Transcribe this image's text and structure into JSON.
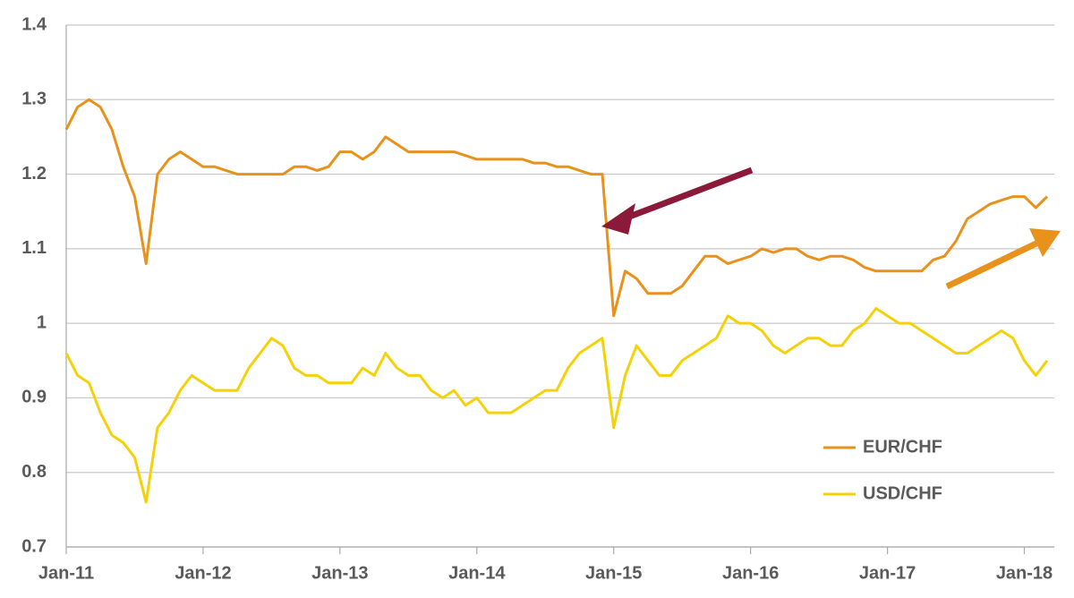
{
  "chart_data": {
    "type": "line",
    "x": [
      "2011-01",
      "2011-02",
      "2011-03",
      "2011-04",
      "2011-05",
      "2011-06",
      "2011-07",
      "2011-08",
      "2011-09",
      "2011-10",
      "2011-11",
      "2011-12",
      "2012-01",
      "2012-02",
      "2012-03",
      "2012-04",
      "2012-05",
      "2012-06",
      "2012-07",
      "2012-08",
      "2012-09",
      "2012-10",
      "2012-11",
      "2012-12",
      "2013-01",
      "2013-02",
      "2013-03",
      "2013-04",
      "2013-05",
      "2013-06",
      "2013-07",
      "2013-08",
      "2013-09",
      "2013-10",
      "2013-11",
      "2013-12",
      "2014-01",
      "2014-02",
      "2014-03",
      "2014-04",
      "2014-05",
      "2014-06",
      "2014-07",
      "2014-08",
      "2014-09",
      "2014-10",
      "2014-11",
      "2014-12",
      "2015-01",
      "2015-02",
      "2015-03",
      "2015-04",
      "2015-05",
      "2015-06",
      "2015-07",
      "2015-08",
      "2015-09",
      "2015-10",
      "2015-11",
      "2015-12",
      "2016-01",
      "2016-02",
      "2016-03",
      "2016-04",
      "2016-05",
      "2016-06",
      "2016-07",
      "2016-08",
      "2016-09",
      "2016-10",
      "2016-11",
      "2016-12",
      "2017-01",
      "2017-02",
      "2017-03",
      "2017-04",
      "2017-05",
      "2017-06",
      "2017-07",
      "2017-08",
      "2017-09",
      "2017-10",
      "2017-11",
      "2017-12",
      "2018-01",
      "2018-02",
      "2018-03"
    ],
    "series": [
      {
        "name": "EUR/CHF",
        "color": "#e8921c",
        "values": [
          1.26,
          1.29,
          1.3,
          1.29,
          1.26,
          1.21,
          1.17,
          1.08,
          1.2,
          1.22,
          1.23,
          1.22,
          1.21,
          1.21,
          1.205,
          1.2,
          1.2,
          1.2,
          1.2,
          1.2,
          1.21,
          1.21,
          1.205,
          1.21,
          1.23,
          1.23,
          1.22,
          1.23,
          1.25,
          1.24,
          1.23,
          1.23,
          1.23,
          1.23,
          1.23,
          1.225,
          1.22,
          1.22,
          1.22,
          1.22,
          1.22,
          1.215,
          1.215,
          1.21,
          1.21,
          1.205,
          1.2,
          1.2,
          1.01,
          1.07,
          1.06,
          1.04,
          1.04,
          1.04,
          1.05,
          1.07,
          1.09,
          1.09,
          1.08,
          1.085,
          1.09,
          1.1,
          1.095,
          1.1,
          1.1,
          1.09,
          1.085,
          1.09,
          1.09,
          1.085,
          1.075,
          1.07,
          1.07,
          1.07,
          1.07,
          1.07,
          1.085,
          1.09,
          1.11,
          1.14,
          1.15,
          1.16,
          1.165,
          1.17,
          1.17,
          1.155,
          1.17
        ]
      },
      {
        "name": "USD/CHF",
        "color": "#f5d10a",
        "values": [
          0.96,
          0.93,
          0.92,
          0.88,
          0.85,
          0.84,
          0.82,
          0.76,
          0.86,
          0.88,
          0.91,
          0.93,
          0.92,
          0.91,
          0.91,
          0.91,
          0.94,
          0.96,
          0.98,
          0.97,
          0.94,
          0.93,
          0.93,
          0.92,
          0.92,
          0.92,
          0.94,
          0.93,
          0.96,
          0.94,
          0.93,
          0.93,
          0.91,
          0.9,
          0.91,
          0.89,
          0.9,
          0.88,
          0.88,
          0.88,
          0.89,
          0.9,
          0.91,
          0.91,
          0.94,
          0.96,
          0.97,
          0.98,
          0.86,
          0.93,
          0.97,
          0.95,
          0.93,
          0.93,
          0.95,
          0.96,
          0.97,
          0.98,
          1.01,
          1.0,
          1.0,
          0.99,
          0.97,
          0.96,
          0.97,
          0.98,
          0.98,
          0.97,
          0.97,
          0.99,
          1.0,
          1.02,
          1.01,
          1.0,
          1.0,
          0.99,
          0.98,
          0.97,
          0.96,
          0.96,
          0.97,
          0.98,
          0.99,
          0.98,
          0.95,
          0.93,
          0.95
        ]
      }
    ],
    "xlim": [
      "2011-01",
      "2018-03"
    ],
    "xticks": [
      {
        "value": "2011-01",
        "label": "Jan-11"
      },
      {
        "value": "2012-01",
        "label": "Jan-12"
      },
      {
        "value": "2013-01",
        "label": "Jan-13"
      },
      {
        "value": "2014-01",
        "label": "Jan-14"
      },
      {
        "value": "2015-01",
        "label": "Jan-15"
      },
      {
        "value": "2016-01",
        "label": "Jan-16"
      },
      {
        "value": "2017-01",
        "label": "Jan-17"
      },
      {
        "value": "2018-01",
        "label": "Jan-18"
      }
    ],
    "ylim": [
      0.7,
      1.4
    ],
    "yticks": [
      0.7,
      0.8,
      0.9,
      1,
      1.1,
      1.2,
      1.3,
      1.4
    ],
    "grid": true,
    "legend": "lower right"
  }
}
